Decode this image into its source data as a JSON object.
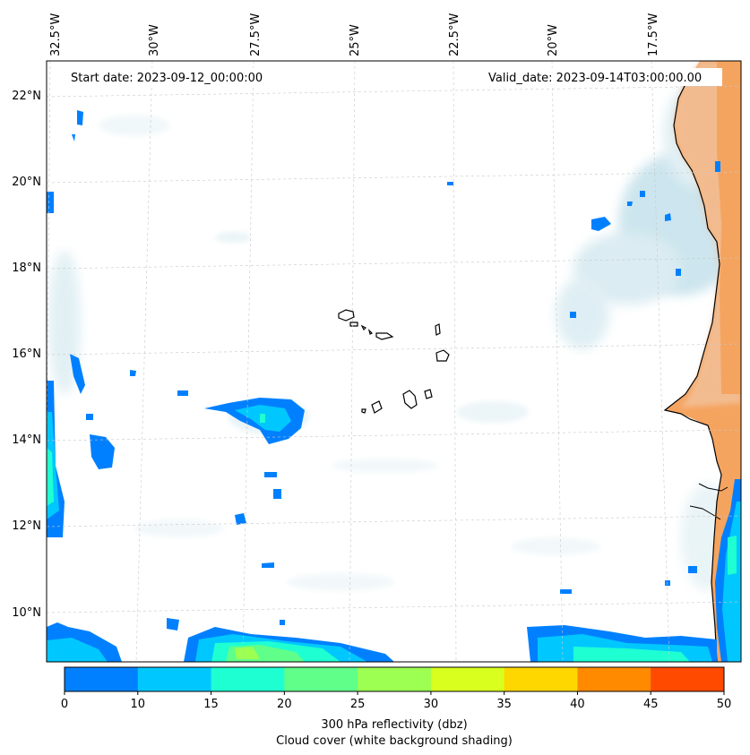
{
  "map": {
    "start_date": "Start date: 2023-09-12_00:00:00",
    "valid_date": "Valid_date: 2023-09-14T03:00:00.00",
    "lon_labels": [
      "32.5°W",
      "30°W",
      "27.5°W",
      "25°W",
      "22.5°W",
      "20°W",
      "17.5°W"
    ],
    "lat_labels": [
      "22°N",
      "20°N",
      "18°N",
      "16°N",
      "14°N",
      "12°N",
      "10°N"
    ]
  },
  "colorbar": {
    "ticks": [
      "0",
      "10",
      "15",
      "20",
      "25",
      "30",
      "35",
      "40",
      "45",
      "50"
    ],
    "colors": [
      "#0080ff",
      "#00c8ff",
      "#1effd2",
      "#60ff8a",
      "#9cff52",
      "#d8ff1e",
      "#ffd700",
      "#ff8a00",
      "#ff4a00"
    ],
    "label_line1": "300 hPa reflectivity (dbz)",
    "label_line2": "Cloud cover (white background shading)"
  },
  "colors": {
    "land": "#f5a460",
    "cloud": "#c8e4ee",
    "coast": "#000000"
  }
}
